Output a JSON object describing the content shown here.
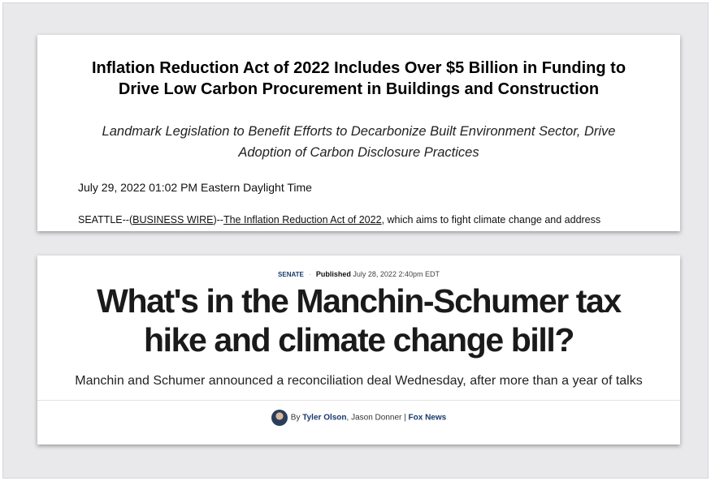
{
  "articles": [
    {
      "title": "Inflation Reduction Act of 2022 Includes Over $5 Billion in Funding to Drive Low Carbon Procurement in Buildings and Construction",
      "subtitle": "Landmark Legislation to Benefit Efforts to Decarbonize Built Environment Sector, Drive Adoption of Carbon Disclosure Practices",
      "date": "July 29, 2022 01:02 PM Eastern Daylight Time",
      "body": [
        "SEATTLE--(",
        "BUSINESS WIRE",
        ")--",
        "The Inflation Reduction Act of 2022",
        ", which aims to fight climate change and address"
      ]
    },
    {
      "category": "SENATE",
      "published_label": "Published",
      "published": "July 28, 2022 2:40pm EDT",
      "title": "What's in the Manchin-Schumer tax hike and climate change bill?",
      "subtitle": "Manchin and Schumer announced a reconciliation deal Wednesday, after more than a year of talks",
      "byline": [
        "By",
        "Tyler Olson",
        ", Jason Donner |",
        "Fox News"
      ]
    }
  ]
}
